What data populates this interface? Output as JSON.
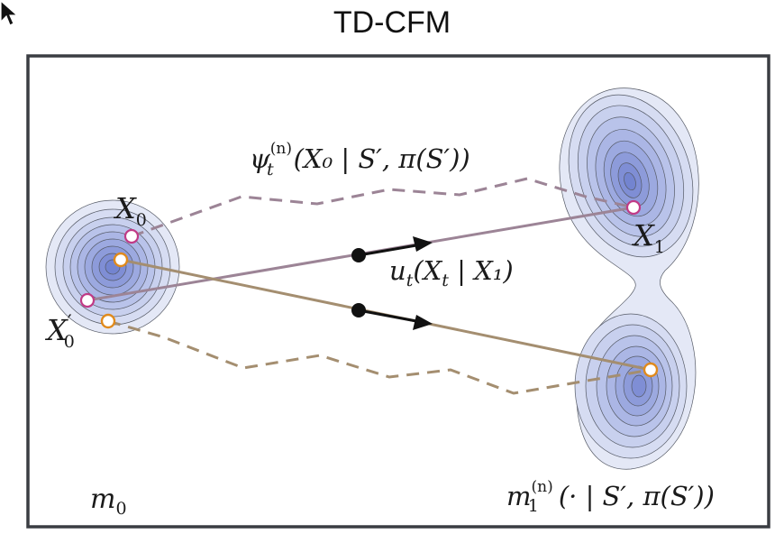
{
  "title": "TD-CFM",
  "labels": {
    "x0": {
      "base": "X",
      "sub": "0"
    },
    "x0_prime": {
      "base": "X",
      "prime": "′",
      "sub": "0"
    },
    "x1": {
      "base": "X",
      "sub": "1"
    },
    "m0": {
      "base": "m",
      "sub": "0"
    },
    "psi": {
      "base": "ψ",
      "sub": "t",
      "sup": "(n)",
      "args": "(X₀ | S′, π(S′))"
    },
    "u": {
      "base": "u",
      "sub": "t",
      "args": "(X",
      "args_sub": "t",
      "args_rest": " | X₁)"
    },
    "m1": {
      "base": "m",
      "sub": "1",
      "sup": "(n)",
      "args": "(· | S′, π(S′))"
    }
  },
  "colors": {
    "density_fill": "#d9dff3",
    "density_core": "#7c8fd3",
    "pink_path": "#9c8496",
    "tan_path": "#a48e70",
    "pink_ring": "#c03a86",
    "orange_ring": "#e08a1c",
    "frame": "#3a3d42"
  },
  "icons": {
    "cursor": "cursor-arrow-icon"
  }
}
